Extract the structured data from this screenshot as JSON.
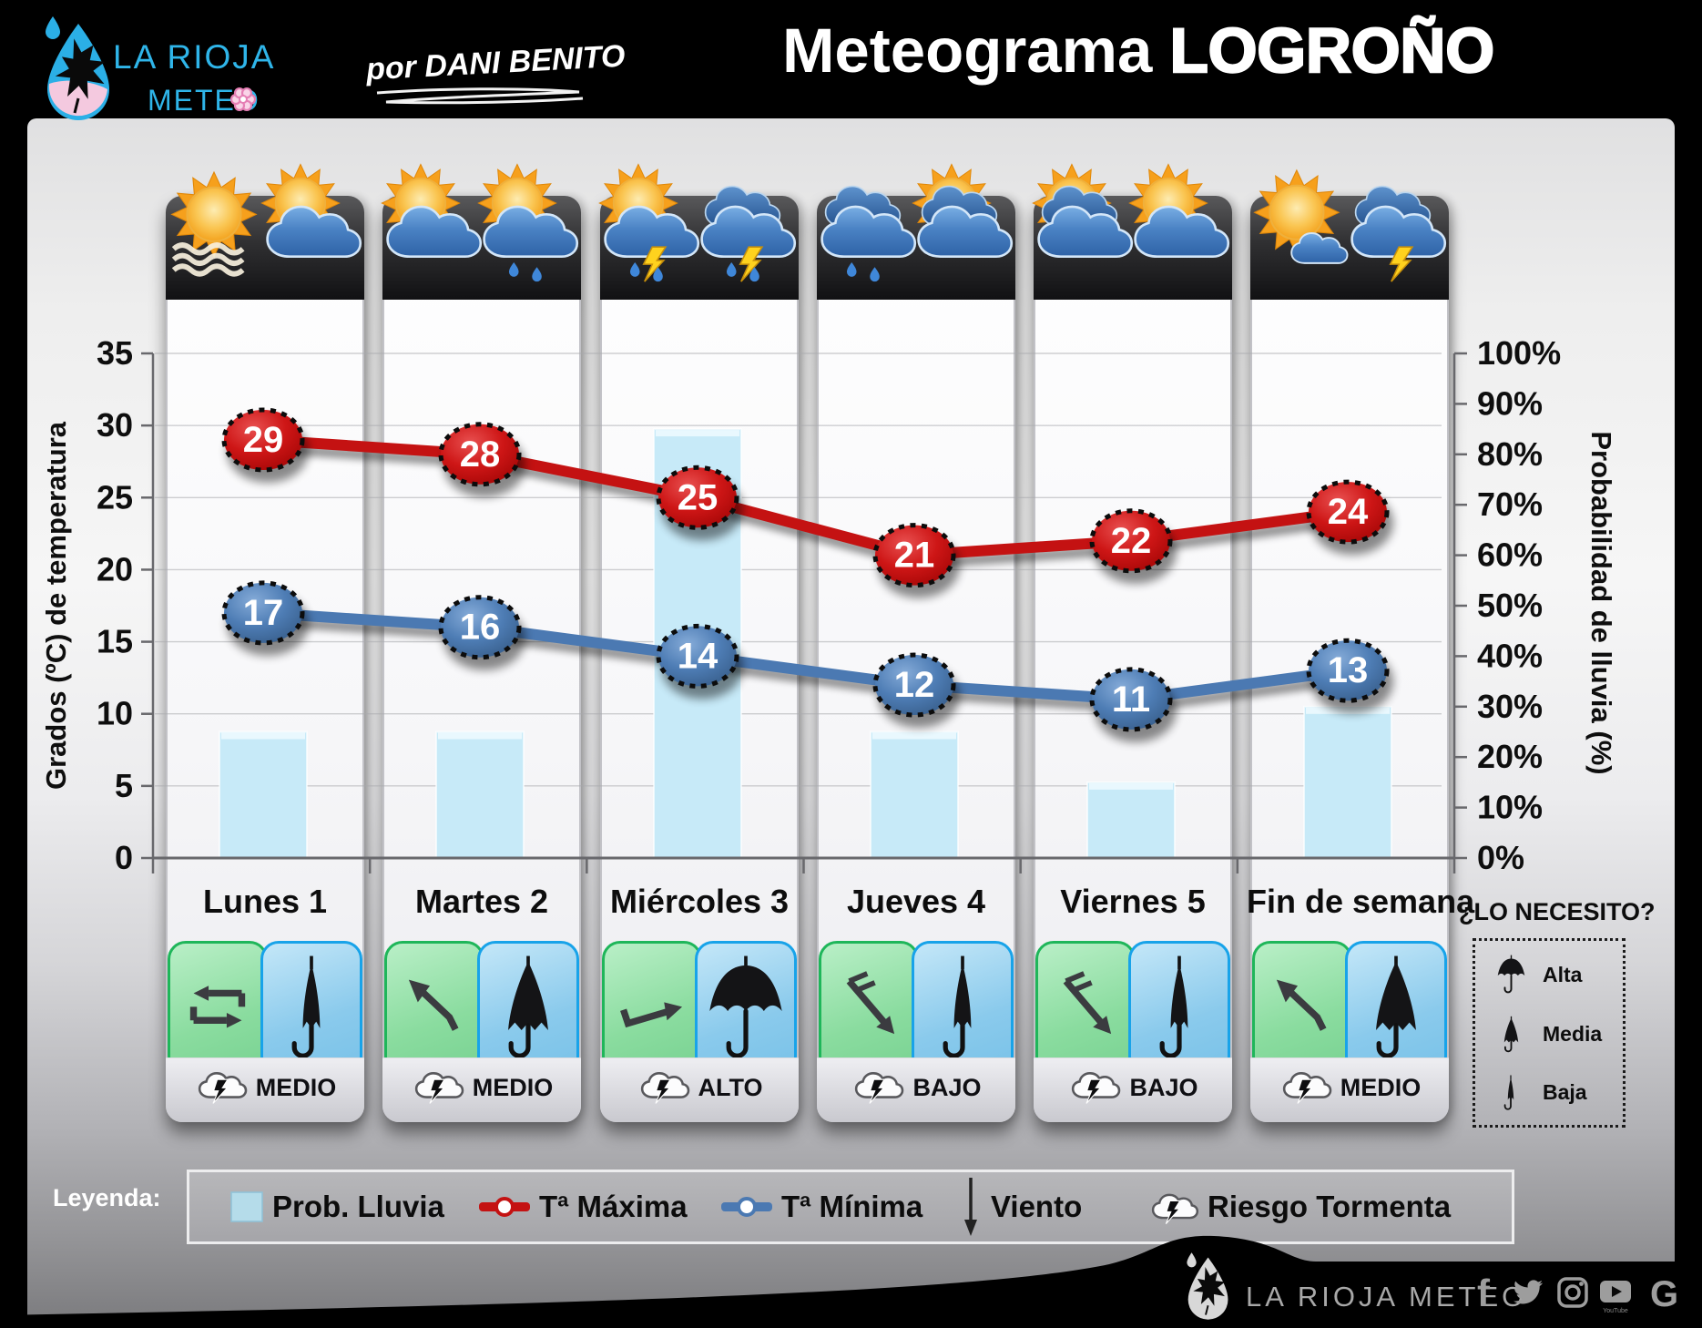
{
  "header": {
    "logo_line1": "LA RIOJA",
    "logo_line2": "METEO",
    "byline": "por DANI BENITO",
    "title_light": "Meteograma",
    "title_heavy": "LOGROÑO"
  },
  "chart_data": {
    "type": "combo",
    "categories": [
      "Lunes 1",
      "Martes 2",
      "Miércoles 3",
      "Jueves 4",
      "Viernes 5",
      "Fin de semana"
    ],
    "series": [
      {
        "name": "Prob. Lluvia",
        "type": "bar",
        "axis": "right",
        "color": "#c7eaf8",
        "values": [
          25,
          25,
          85,
          25,
          15,
          30
        ]
      },
      {
        "name": "Tª Máxima",
        "type": "line",
        "axis": "left",
        "color": "#c41212",
        "values": [
          29,
          28,
          25,
          21,
          22,
          24
        ]
      },
      {
        "name": "Tª Mínima",
        "type": "line",
        "axis": "left",
        "color": "#4b79b2",
        "values": [
          17,
          16,
          14,
          12,
          11,
          13
        ]
      }
    ],
    "left_axis": {
      "label": "Grados (ºC) de temperatura",
      "min": 0,
      "max": 35,
      "step": 5
    },
    "right_axis": {
      "label": "Probabilidad de lluvia (%)",
      "min": 0,
      "max": 100,
      "step": 10,
      "suffix": "%"
    },
    "grid": true,
    "legend_position": "bottom"
  },
  "days": [
    {
      "label": "Lunes 1",
      "icons": [
        [
          "sun",
          "fog"
        ],
        [
          "sun",
          "cloud"
        ]
      ],
      "wind": "loop",
      "umbrella": "baja",
      "storm_risk": "MEDIO"
    },
    {
      "label": "Martes 2",
      "icons": [
        [
          "sun",
          "cloud"
        ],
        [
          "sun",
          "cloud",
          "rain"
        ]
      ],
      "wind": "nw",
      "umbrella": "media",
      "storm_risk": "MEDIO"
    },
    {
      "label": "Miércoles 3",
      "icons": [
        [
          "sun",
          "cloud",
          "lightning",
          "rain"
        ],
        [
          "cloud2",
          "cloud",
          "lightning",
          "rain"
        ]
      ],
      "wind": "e",
      "umbrella": "alta",
      "storm_risk": "ALTO"
    },
    {
      "label": "Jueves 4",
      "icons": [
        [
          "cloud2",
          "cloud",
          "rain"
        ],
        [
          "sun",
          "cloud2",
          "cloud"
        ]
      ],
      "wind": "barb",
      "umbrella": "baja",
      "storm_risk": "BAJO"
    },
    {
      "label": "Viernes 5",
      "icons": [
        [
          "sun",
          "cloud2",
          "cloud"
        ],
        [
          "sun",
          "cloud"
        ]
      ],
      "wind": "barb",
      "umbrella": "baja",
      "storm_risk": "BAJO"
    },
    {
      "label": "Fin de semana",
      "icons": [
        [
          "sun",
          "cloudsmall"
        ],
        [
          "cloud2",
          "cloud",
          "lightning"
        ]
      ],
      "wind": "nw",
      "umbrella": "media",
      "storm_risk": "MEDIO"
    }
  ],
  "need_box": {
    "title": "¿LO NECESITO?",
    "items": [
      {
        "level": "alta",
        "label": "Alta"
      },
      {
        "level": "media",
        "label": "Media"
      },
      {
        "level": "baja",
        "label": "Baja"
      }
    ]
  },
  "legend": {
    "title": "Leyenda:",
    "items": [
      {
        "icon": "bar-swatch",
        "label": "Prob. Lluvia"
      },
      {
        "icon": "line-red",
        "label": "Tª Máxima"
      },
      {
        "icon": "line-blue",
        "label": "Tª Mínima"
      },
      {
        "icon": "wind-arrow",
        "label": "Viento"
      },
      {
        "icon": "storm-cloud",
        "label": "Riesgo Tormenta"
      }
    ]
  },
  "footer": {
    "brand": "LA RIOJA METEO",
    "youtube_label": "YouTube",
    "social": [
      "facebook",
      "twitter",
      "instagram",
      "youtube",
      "google"
    ]
  },
  "colors": {
    "temp_max": "#c41212",
    "temp_min": "#4b79b2",
    "rain_bar": "#c7eaf8",
    "logo_blue": "#2fb5e9",
    "logo_pink": "#f4c9df",
    "wind_card_green": "#1fb65a",
    "umbrella_card_blue": "#18a3e9"
  }
}
